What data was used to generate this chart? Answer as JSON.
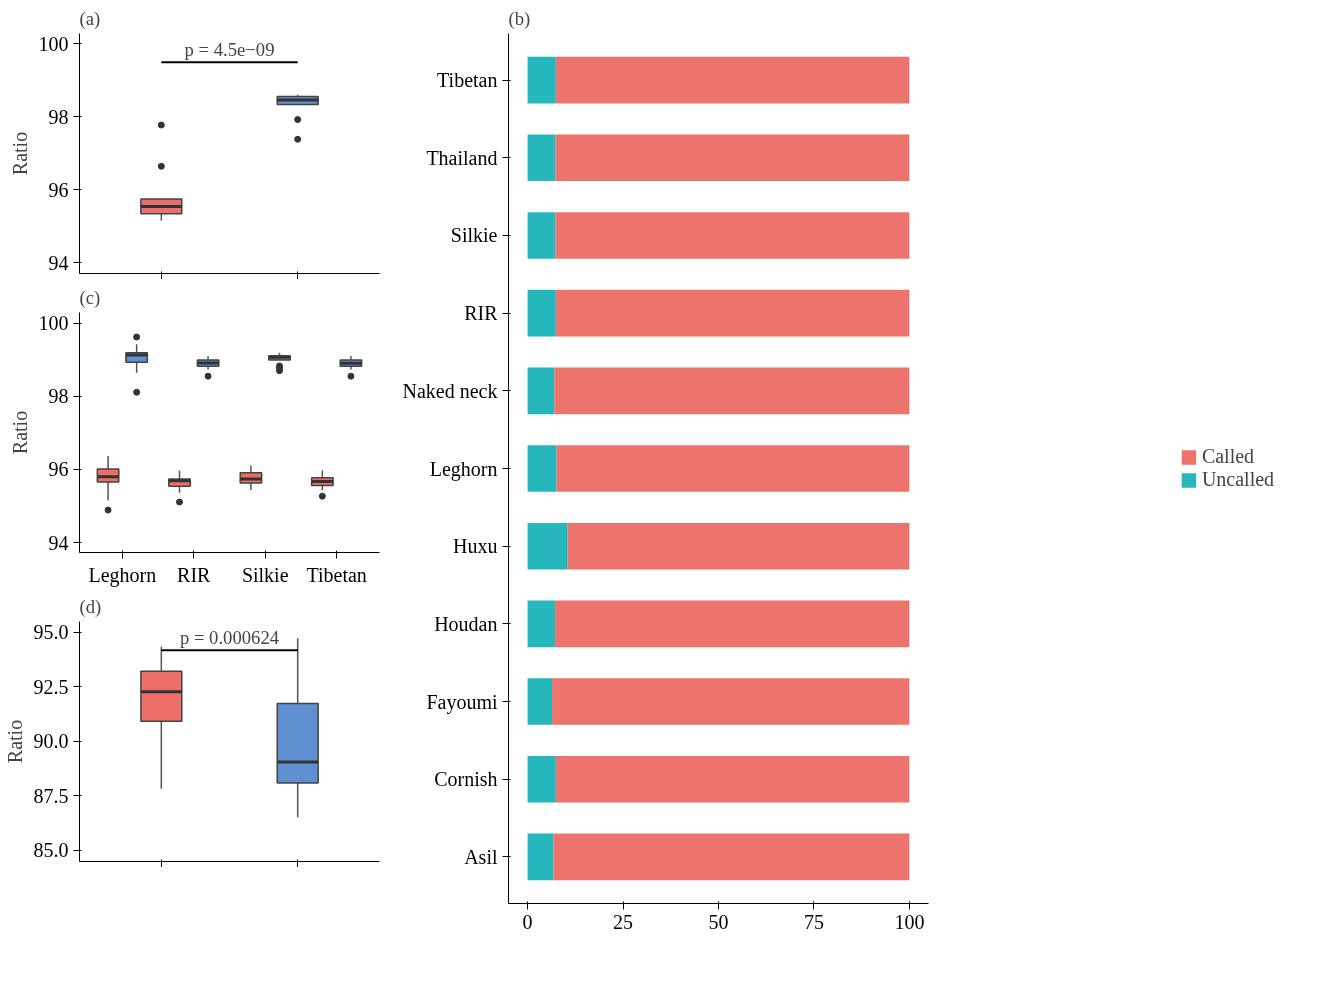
{
  "chart_data": [
    {
      "type": "box",
      "title": "(a)",
      "ylabel": "Ratio",
      "categories": [
        null,
        null
      ],
      "colors": [
        "#ec7069",
        "#5e8fd0"
      ],
      "boxes": [
        {
          "low": 95.15,
          "q1": 95.34,
          "median": 95.54,
          "q3": 95.74,
          "high": 95.74,
          "outliers": [
            97.77,
            96.64
          ]
        },
        {
          "low": 98.33,
          "q1": 98.33,
          "median": 98.46,
          "q3": 98.55,
          "high": 98.6,
          "outliers": [
            97.92,
            97.38
          ]
        }
      ],
      "ylim": [
        93.7,
        100.28
      ],
      "yticks": [
        94,
        96,
        98,
        100
      ],
      "annotations": [
        "p = 4.5e−09"
      ]
    },
    {
      "type": "bar",
      "title": "(b)",
      "orientation": "horizontal",
      "stacked": true,
      "legend": "right",
      "categories": [
        "Tibetan",
        "Thailand",
        "Silkie",
        "RIR",
        "Naked neck",
        "Leghorn",
        "Huxu",
        "Houdan",
        "Fayoumi",
        "Cornish",
        "Asil"
      ],
      "series": [
        {
          "name": "Uncalled",
          "color": "#25b7bc",
          "values": [
            7.4,
            7.3,
            7.3,
            7.4,
            7.0,
            7.6,
            10.5,
            7.2,
            6.4,
            7.4,
            6.8
          ]
        },
        {
          "name": "Called",
          "color": "#ec746d",
          "values": [
            92.6,
            92.7,
            92.7,
            92.6,
            93.0,
            92.4,
            89.5,
            92.8,
            93.6,
            92.6,
            93.2
          ]
        }
      ],
      "xlim": [
        -5,
        105
      ],
      "xticks": [
        0,
        25,
        50,
        75,
        100
      ]
    },
    {
      "type": "box",
      "title": "(c)",
      "ylabel": "Ratio",
      "categories": [
        "Leghorn",
        "RIR",
        "Silkie",
        "Tibetan"
      ],
      "series": [
        {
          "color": "#ec7069",
          "boxes": [
            {
              "low": 95.15,
              "q1": 95.66,
              "median": 95.8,
              "q3": 96.01,
              "high": 96.37,
              "outliers": [
                94.89
              ]
            },
            {
              "low": 95.36,
              "q1": 95.54,
              "median": 95.69,
              "q3": 95.74,
              "high": 95.97,
              "outliers": [
                95.11
              ]
            },
            {
              "low": 95.44,
              "q1": 95.63,
              "median": 95.74,
              "q3": 95.91,
              "high": 96.11
            },
            {
              "low": 95.44,
              "q1": 95.56,
              "median": 95.67,
              "q3": 95.77,
              "high": 95.97,
              "outliers": [
                95.27
              ]
            }
          ]
        },
        {
          "color": "#5e8fd0",
          "boxes": [
            {
              "low": 98.64,
              "q1": 98.93,
              "median": 99.13,
              "q3": 99.19,
              "high": 99.42,
              "outliers": [
                99.62,
                98.11
              ]
            },
            {
              "low": 98.73,
              "q1": 98.82,
              "median": 98.91,
              "q3": 98.99,
              "high": 99.1,
              "outliers": [
                98.55
              ]
            },
            {
              "low": 98.99,
              "q1": 98.99,
              "median": 99.07,
              "q3": 99.11,
              "high": 99.19,
              "outliers": [
                98.83,
                98.77,
                98.7
              ]
            },
            {
              "low": 98.73,
              "q1": 98.82,
              "median": 98.9,
              "q3": 98.99,
              "high": 99.1,
              "outliers": [
                98.55
              ]
            }
          ]
        }
      ],
      "ylim": [
        93.73,
        100.29
      ],
      "yticks": [
        94,
        96,
        98,
        100
      ]
    },
    {
      "type": "box",
      "title": "(d)",
      "ylabel": "Ratio",
      "categories": [
        null,
        null
      ],
      "colors": [
        "#ec7069",
        "#5e8fd0"
      ],
      "boxes": [
        {
          "low": 87.82,
          "q1": 90.92,
          "median": 92.27,
          "q3": 93.22,
          "high": 94.34
        },
        {
          "low": 86.51,
          "q1": 88.08,
          "median": 89.05,
          "q3": 91.74,
          "high": 94.73
        }
      ],
      "ylim": [
        84.48,
        95.5
      ],
      "yticks": [
        {
          "value": 85,
          "label": "85.0"
        },
        {
          "value": 87.5,
          "label": "87.5"
        },
        {
          "value": 90,
          "label": "90.0"
        },
        {
          "value": 92.5,
          "label": "92.5"
        },
        {
          "value": 95,
          "label": "95.0"
        }
      ],
      "annotations": [
        "p = 0.000624"
      ]
    }
  ]
}
